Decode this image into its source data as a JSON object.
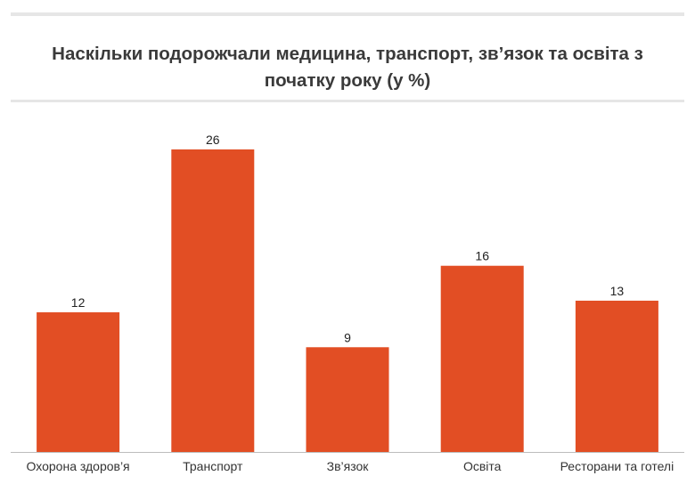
{
  "header": {
    "title": "Наскільки подорожчали медицина, транспорт,  зв’язок та освіта з початку року (у %)"
  },
  "chart_data": {
    "type": "bar",
    "title": "Наскільки подорожчали медицина, транспорт,  зв’язок та освіта з початку року (у %)",
    "categories": [
      "Охорона здоров’я",
      "Транспорт",
      "Зв’язок",
      "Освіта",
      "Ресторани та готелі"
    ],
    "values": [
      12,
      26,
      9,
      16,
      13
    ],
    "xlabel": "",
    "ylabel": "",
    "ylim": [
      0,
      30
    ],
    "grid": false,
    "legend": "none",
    "bar_color": "#e24e24",
    "axis_color": "#bdbdbd"
  }
}
